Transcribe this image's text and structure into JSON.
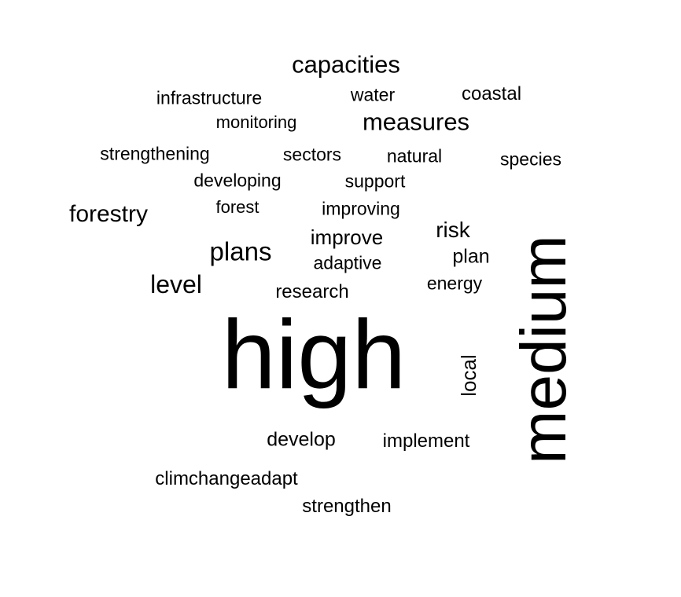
{
  "wordcloud": {
    "words": {
      "capacities": "capacities",
      "infrastructure": "infrastructure",
      "water": "water",
      "coastal": "coastal",
      "monitoring": "monitoring",
      "measures": "measures",
      "strengthening": "strengthening",
      "sectors": "sectors",
      "natural": "natural",
      "species": "species",
      "developing": "developing",
      "support": "support",
      "forestry": "forestry",
      "forest": "forest",
      "improving": "improving",
      "risk": "risk",
      "improve": "improve",
      "plans": "plans",
      "plan": "plan",
      "adaptive": "adaptive",
      "level": "level",
      "energy": "energy",
      "research": "research",
      "high": "high",
      "local": "local",
      "medium": "medium",
      "develop": "develop",
      "implement": "implement",
      "climchangeadapt": "climchangeadapt",
      "strengthen": "strengthen"
    },
    "text_color": "#000000",
    "background_color": "#ffffff"
  }
}
